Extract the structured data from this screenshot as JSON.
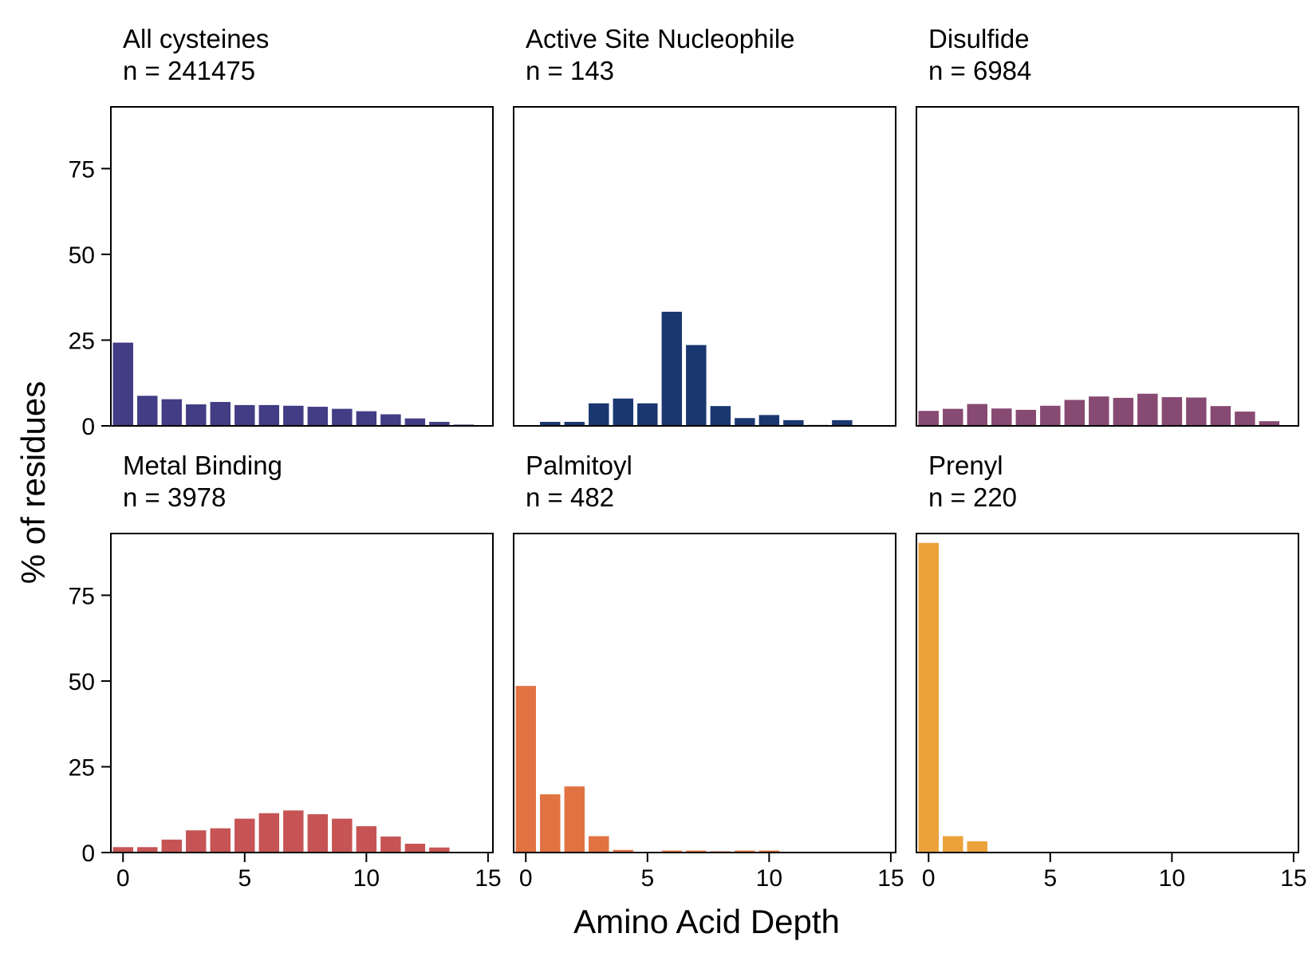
{
  "figure": {
    "ylabel": "% of residues",
    "xlabel": "Amino Acid Depth"
  },
  "chart_data": [
    {
      "type": "bar",
      "title": "All cysteines",
      "subtitle": "n = 241475",
      "color": "#423d85",
      "x": [
        0,
        1,
        2,
        3,
        4,
        5,
        6,
        7,
        8,
        9,
        10,
        11,
        12,
        13,
        14
      ],
      "values": [
        24.5,
        9.0,
        8.0,
        6.5,
        7.2,
        6.3,
        6.3,
        6.1,
        5.8,
        5.2,
        4.5,
        3.6,
        2.4,
        1.4,
        0.6
      ],
      "xlim": [
        -0.5,
        15.2
      ],
      "ylim": [
        0,
        93
      ],
      "xticks": [
        0,
        5,
        10,
        15
      ],
      "yticks": [
        0,
        25,
        50,
        75
      ],
      "show_xticks": false,
      "show_yticks": true
    },
    {
      "type": "bar",
      "title": "Active Site Nucleophile",
      "subtitle": "n = 143",
      "color": "#1a376f",
      "x": [
        0,
        1,
        2,
        3,
        4,
        5,
        6,
        7,
        8,
        9,
        10,
        11,
        12,
        13,
        14
      ],
      "values": [
        0,
        1.4,
        1.4,
        6.8,
        8.2,
        6.8,
        33.5,
        23.8,
        6.0,
        2.5,
        3.4,
        1.9,
        0.5,
        1.9,
        0
      ],
      "xlim": [
        -0.5,
        15.2
      ],
      "ylim": [
        0,
        93
      ],
      "xticks": [
        0,
        5,
        10,
        15
      ],
      "yticks": [
        0,
        25,
        50,
        75
      ],
      "show_xticks": false,
      "show_yticks": false
    },
    {
      "type": "bar",
      "title": "Disulfide",
      "subtitle": "n = 6984",
      "color": "#874a72",
      "x": [
        0,
        1,
        2,
        3,
        4,
        5,
        6,
        7,
        8,
        9,
        10,
        11,
        12,
        13,
        14
      ],
      "values": [
        4.6,
        5.2,
        6.6,
        5.3,
        4.9,
        6.1,
        7.8,
        8.8,
        8.4,
        9.6,
        8.6,
        8.5,
        6.0,
        4.4,
        1.6
      ],
      "xlim": [
        -0.5,
        15.2
      ],
      "ylim": [
        0,
        93
      ],
      "xticks": [
        0,
        5,
        10,
        15
      ],
      "yticks": [
        0,
        25,
        50,
        75
      ],
      "show_xticks": false,
      "show_yticks": false
    },
    {
      "type": "bar",
      "title": "Metal Binding",
      "subtitle": "n = 3978",
      "color": "#c65455",
      "x": [
        0,
        1,
        2,
        3,
        4,
        5,
        6,
        7,
        8,
        9,
        10,
        11,
        12,
        13,
        14
      ],
      "values": [
        1.8,
        1.8,
        4.0,
        6.7,
        7.3,
        10.1,
        11.7,
        12.5,
        11.4,
        10.1,
        7.9,
        4.9,
        2.8,
        1.7,
        0.3
      ],
      "xlim": [
        -0.5,
        15.2
      ],
      "ylim": [
        0,
        93
      ],
      "xticks": [
        0,
        5,
        10,
        15
      ],
      "yticks": [
        0,
        25,
        50,
        75
      ],
      "show_xticks": true,
      "show_yticks": true
    },
    {
      "type": "bar",
      "title": "Palmitoyl",
      "subtitle": "n = 482",
      "color": "#e17342",
      "x": [
        0,
        1,
        2,
        3,
        4,
        5,
        6,
        7,
        8,
        9,
        10,
        11,
        12,
        13,
        14
      ],
      "values": [
        48.8,
        17.2,
        19.5,
        5.0,
        1.0,
        0.4,
        0.8,
        0.8,
        0.6,
        0.8,
        0.8,
        0.4,
        0,
        0,
        0
      ],
      "xlim": [
        -0.5,
        15.2
      ],
      "ylim": [
        0,
        93
      ],
      "xticks": [
        0,
        5,
        10,
        15
      ],
      "yticks": [
        0,
        25,
        50,
        75
      ],
      "show_xticks": true,
      "show_yticks": false
    },
    {
      "type": "bar",
      "title": "Prenyl",
      "subtitle": "n = 220",
      "color": "#eba23a",
      "x": [
        0,
        1,
        2,
        3,
        4,
        5,
        6,
        7,
        8,
        9,
        10,
        11,
        12,
        13,
        14
      ],
      "values": [
        90.5,
        5.0,
        3.5,
        0,
        0,
        0,
        0,
        0,
        0,
        0,
        0,
        0,
        0,
        0,
        0
      ],
      "xlim": [
        -0.5,
        15.2
      ],
      "ylim": [
        0,
        93
      ],
      "xticks": [
        0,
        5,
        10,
        15
      ],
      "yticks": [
        0,
        25,
        50,
        75
      ],
      "show_xticks": true,
      "show_yticks": false
    }
  ]
}
